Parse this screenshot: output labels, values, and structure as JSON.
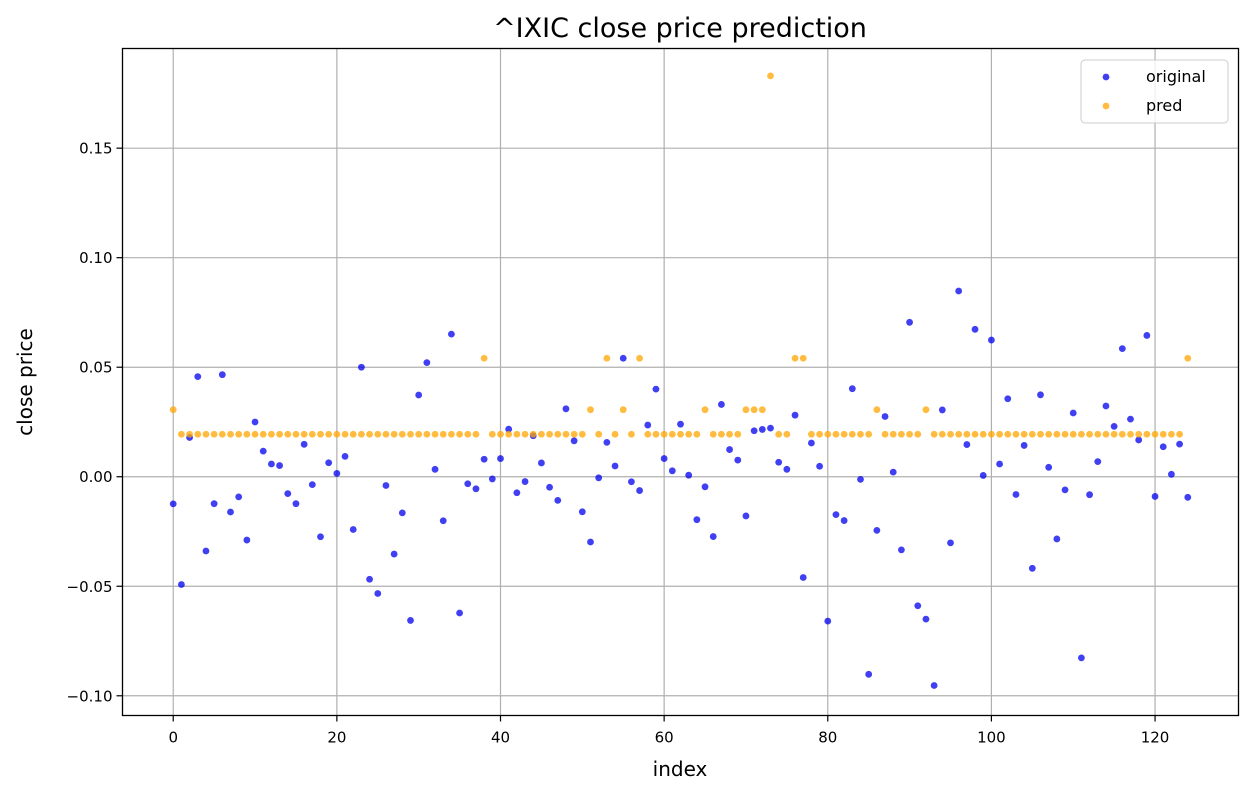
{
  "chart_data": {
    "type": "scatter",
    "title": "^IXIC close price prediction",
    "xlabel": "index",
    "ylabel": "close price",
    "xlim": [
      -6.2,
      130.2
    ],
    "ylim": [
      -0.109,
      0.1955
    ],
    "xticks": [
      0,
      20,
      40,
      60,
      80,
      100,
      120
    ],
    "xtick_labels": [
      "0",
      "20",
      "40",
      "60",
      "80",
      "100",
      "120"
    ],
    "yticks": [
      -0.1,
      -0.05,
      0.0,
      0.05,
      0.1,
      0.15
    ],
    "ytick_labels": [
      "−0.10",
      "−0.05",
      "0.00",
      "0.05",
      "0.10",
      "0.15"
    ],
    "grid": true,
    "legend_position": "top-right",
    "series": [
      {
        "name": "original",
        "color": "#0000ee",
        "y": [
          -0.0124,
          -0.0492,
          0.0179,
          0.0457,
          -0.0339,
          -0.0123,
          0.0466,
          -0.0161,
          -0.0092,
          -0.0289,
          0.025,
          0.0117,
          0.0058,
          0.0051,
          -0.0077,
          -0.0123,
          0.0148,
          -0.0036,
          -0.0274,
          0.0064,
          0.0015,
          0.0093,
          -0.0241,
          0.05,
          -0.0468,
          -0.0533,
          -0.004,
          -0.0353,
          -0.0165,
          -0.0656,
          0.0373,
          0.0521,
          0.0034,
          -0.0201,
          0.0651,
          -0.0622,
          -0.0032,
          -0.0055,
          0.008,
          -0.001,
          0.0083,
          0.0217,
          -0.0073,
          -0.0022,
          0.0187,
          0.0063,
          -0.0048,
          -0.0108,
          0.031,
          0.0164,
          -0.016,
          -0.0298,
          -0.0005,
          0.0157,
          0.0049,
          0.0541,
          -0.0023,
          -0.0063,
          0.0236,
          0.04,
          0.0083,
          0.0027,
          0.024,
          0.0007,
          -0.0196,
          -0.0046,
          -0.0273,
          0.033,
          0.0124,
          0.0076,
          -0.0179,
          0.021,
          0.0216,
          0.0222,
          0.0066,
          0.0034,
          0.0281,
          -0.046,
          0.0154,
          0.0048,
          -0.0659,
          -0.0173,
          -0.02,
          0.0402,
          -0.0012,
          -0.0902,
          -0.0245,
          0.0275,
          0.0021,
          -0.0334,
          0.0705,
          -0.0589,
          -0.065,
          -0.0953,
          0.0305,
          -0.0302,
          0.0848,
          0.0147,
          0.0673,
          0.0006,
          0.0624,
          0.0058,
          0.0356,
          -0.0081,
          0.0143,
          -0.0418,
          0.0374,
          0.0043,
          -0.0284,
          -0.006,
          0.0291,
          -0.0827,
          -0.0082,
          0.0069,
          0.0323,
          0.023,
          0.0585,
          0.0263,
          0.0168,
          0.0645,
          -0.009,
          0.0137,
          0.0011,
          0.0149,
          -0.0094
        ]
      },
      {
        "name": "pred",
        "color": "#ffa500",
        "y": [
          0.0306,
          0.0194,
          0.0194,
          0.0194,
          0.0194,
          0.0194,
          0.0194,
          0.0194,
          0.0194,
          0.0194,
          0.0194,
          0.0194,
          0.0194,
          0.0194,
          0.0194,
          0.0194,
          0.0194,
          0.0194,
          0.0194,
          0.0194,
          0.0194,
          0.0194,
          0.0194,
          0.0194,
          0.0194,
          0.0194,
          0.0194,
          0.0194,
          0.0194,
          0.0194,
          0.0194,
          0.0194,
          0.0194,
          0.0194,
          0.0194,
          0.0194,
          0.0194,
          0.0194,
          0.0541,
          0.0194,
          0.0194,
          0.0194,
          0.0194,
          0.0194,
          0.0194,
          0.0194,
          0.0194,
          0.0194,
          0.0194,
          0.0194,
          0.0194,
          0.0306,
          0.0194,
          0.0541,
          0.0194,
          0.0306,
          0.0194,
          0.0541,
          0.0194,
          0.0194,
          0.0194,
          0.0194,
          0.0194,
          0.0194,
          0.0194,
          0.0306,
          0.0194,
          0.0194,
          0.0194,
          0.0194,
          0.0306,
          0.0306,
          0.0306,
          0.183,
          0.0194,
          0.0194,
          0.0541,
          0.0541,
          0.0194,
          0.0194,
          0.0194,
          0.0194,
          0.0194,
          0.0194,
          0.0194,
          0.0194,
          0.0306,
          0.0194,
          0.0194,
          0.0194,
          0.0194,
          0.0194,
          0.0306,
          0.0194,
          0.0194,
          0.0194,
          0.0194,
          0.0194,
          0.0194,
          0.0194,
          0.0194,
          0.0194,
          0.0194,
          0.0194,
          0.0194,
          0.0194,
          0.0194,
          0.0194,
          0.0194,
          0.0194,
          0.0194,
          0.0194,
          0.0194,
          0.0194,
          0.0194,
          0.0194,
          0.0194,
          0.0194,
          0.0194,
          0.0194,
          0.0194,
          0.0194,
          0.0194,
          0.0194,
          0.0541
        ]
      }
    ]
  }
}
